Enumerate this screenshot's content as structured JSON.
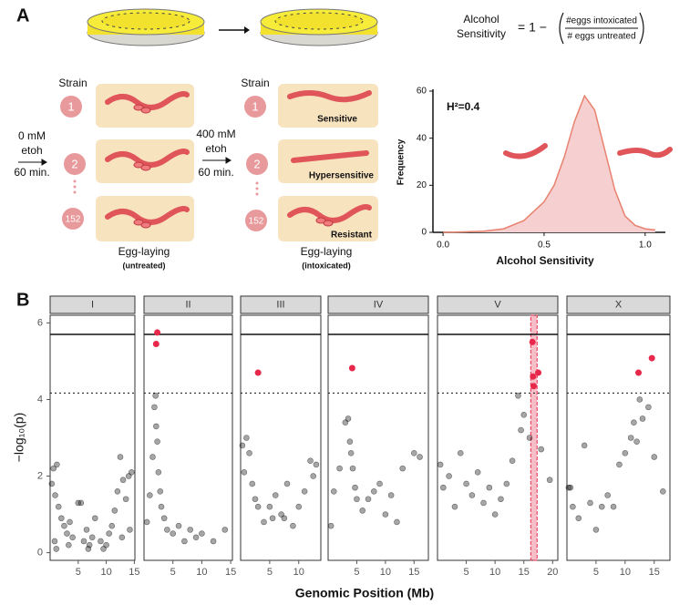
{
  "diagram": {
    "panel_a": "A",
    "panel_b": "B",
    "formula": {
      "lhs": [
        "Alcohol",
        "Sensitivity"
      ],
      "rhs": "= 1 −",
      "numerator": "#eggs intoxicated",
      "denominator": "# eggs untreated"
    },
    "strain_label": "Strain",
    "strains": [
      "1",
      "2",
      "152"
    ],
    "treatment_1": [
      "0 mM",
      "etoh",
      "60 min."
    ],
    "treatment_2": [
      "400 mM",
      "etoh",
      "60 min."
    ],
    "phenotypes": [
      "Sensitive",
      "Hypersensitive",
      "Resistant"
    ],
    "caption_1": [
      "Egg-laying",
      "(untreated)"
    ],
    "caption_2": [
      "Egg-laying",
      "(intoxicated)"
    ]
  },
  "chart_data": [
    {
      "type": "area",
      "annotation": "H²=0.4",
      "x_label": "Alcohol Sensitivity",
      "y_label": "Frequency",
      "x": [
        0,
        0.1,
        0.2,
        0.3,
        0.4,
        0.5,
        0.55,
        0.6,
        0.65,
        0.7,
        0.75,
        0.8,
        0.85,
        0.9,
        0.95,
        1.0,
        1.05
      ],
      "values": [
        0,
        0.2,
        0.5,
        1.5,
        5,
        13,
        20,
        32,
        47,
        58,
        52,
        35,
        18,
        7,
        3,
        1.5,
        1
      ],
      "color": "#e8826e",
      "fill": "#f6cfd1",
      "xlim": [
        -0.05,
        1.1
      ],
      "xticks": [
        {
          "value": 0,
          "label": "0.0"
        },
        {
          "value": 0.5,
          "label": "0.5"
        },
        {
          "value": 1,
          "label": "1.0"
        }
      ],
      "ylim": [
        0,
        60
      ],
      "yticks": [
        0,
        20,
        40,
        60
      ]
    },
    {
      "type": "scatter",
      "x_label": "Genomic Position (Mb)",
      "y_label": "−log₁₀(p)",
      "ylim": [
        -0.2,
        6.2
      ],
      "yticks": [
        0,
        2,
        4,
        6
      ],
      "point_color": "#000000",
      "sig_color": "#e8284a",
      "highlight_color": "#e8284a",
      "thresholds": [
        {
          "value": 5.7,
          "style": "solid"
        },
        {
          "value": 4.17,
          "style": "dotted"
        }
      ],
      "facets": [
        {
          "name": "I",
          "xlim": [
            0,
            15.1
          ],
          "xticks": [
            5,
            10,
            15
          ],
          "x": [
            0.3,
            0.6,
            0.9,
            1.2,
            1.5,
            2,
            2.5,
            3,
            3.5,
            4,
            5,
            5.5,
            6,
            6.5,
            7,
            7.5,
            8,
            9,
            10,
            10.5,
            11,
            11.5,
            12,
            12.5,
            13,
            13.5,
            14,
            14.5,
            0.8,
            1.1,
            3.3,
            6.8,
            9.5,
            12.8,
            14.2
          ],
          "y": [
            1.8,
            2.2,
            1.5,
            2.3,
            1.2,
            0.9,
            0.7,
            0.5,
            0.8,
            0.4,
            1.3,
            1.3,
            0.3,
            0.6,
            0.2,
            0.4,
            0.9,
            0.3,
            0.2,
            0.5,
            0.7,
            1.1,
            1.6,
            2.5,
            1.9,
            1.4,
            2.0,
            2.1,
            0.3,
            0.1,
            0.2,
            0.1,
            0.1,
            0.4,
            0.6
          ],
          "sig_x": [],
          "sig_y": []
        },
        {
          "name": "II",
          "xlim": [
            0,
            15.3
          ],
          "xticks": [
            5,
            10,
            15
          ],
          "x": [
            0.5,
            1,
            1.5,
            1.8,
            2,
            2.1,
            2.3,
            2.5,
            2.8,
            3,
            3.5,
            4,
            5,
            6,
            7,
            8,
            9,
            10,
            12,
            14
          ],
          "y": [
            0.8,
            1.5,
            2.5,
            3.8,
            4.1,
            3.3,
            2.9,
            2.1,
            1.6,
            1.2,
            0.9,
            0.6,
            0.5,
            0.7,
            0.3,
            0.6,
            0.4,
            0.5,
            0.3,
            0.6
          ],
          "sig_x": [
            2.3,
            2.1
          ],
          "sig_y": [
            5.75,
            5.45
          ]
        },
        {
          "name": "III",
          "xlim": [
            0,
            13.8
          ],
          "xticks": [
            5,
            10
          ],
          "x": [
            0.3,
            0.6,
            1,
            1.5,
            2,
            2.5,
            3,
            4,
            5,
            5.5,
            6,
            7,
            7.5,
            8,
            9,
            10,
            11,
            12,
            12.5,
            13
          ],
          "y": [
            2.8,
            2.1,
            3.0,
            2.6,
            1.8,
            1.4,
            1.2,
            0.8,
            1.2,
            0.9,
            1.5,
            1.0,
            0.9,
            1.8,
            0.7,
            1.2,
            1.6,
            2.4,
            2.0,
            2.3
          ],
          "sig_x": [
            3
          ],
          "sig_y": [
            4.7
          ]
        },
        {
          "name": "IV",
          "xlim": [
            0,
            17.5
          ],
          "xticks": [
            5,
            10,
            15
          ],
          "x": [
            0.5,
            1,
            2,
            3,
            3.5,
            3.8,
            4,
            4.3,
            4.7,
            5,
            6,
            7,
            8,
            9,
            10,
            11,
            12,
            13,
            15,
            16
          ],
          "y": [
            0.7,
            1.6,
            2.2,
            3.4,
            3.5,
            2.9,
            2.6,
            2.2,
            1.7,
            1.4,
            1.1,
            1.4,
            1.6,
            1.8,
            1.0,
            1.5,
            0.8,
            2.2,
            2.6,
            2.5
          ],
          "sig_x": [
            4.2
          ],
          "sig_y": [
            4.82
          ]
        },
        {
          "name": "V",
          "xlim": [
            0,
            20.9
          ],
          "xticks": [
            5,
            10,
            15,
            20
          ],
          "highlight": [
            16.2,
            17.3
          ],
          "x": [
            0.5,
            1,
            2,
            3,
            4,
            5,
            6,
            7,
            8,
            9,
            10,
            11,
            12,
            13,
            14,
            14.5,
            15,
            16,
            18,
            19.5
          ],
          "y": [
            2.3,
            1.7,
            2.0,
            1.2,
            2.6,
            1.8,
            1.5,
            2.1,
            1.3,
            1.7,
            1.0,
            1.4,
            1.8,
            2.4,
            4.1,
            3.2,
            3.6,
            3.0,
            2.7,
            1.9
          ],
          "sig_x": [
            16.5,
            16.6,
            16.7,
            17.5
          ],
          "sig_y": [
            5.5,
            4.6,
            4.35,
            4.7
          ]
        },
        {
          "name": "X",
          "xlim": [
            0,
            17.7
          ],
          "xticks": [
            5,
            10,
            15
          ],
          "x": [
            0.3,
            0.6,
            1,
            2,
            3,
            4,
            5,
            6,
            7,
            8,
            9,
            10,
            11,
            11.5,
            12,
            12.5,
            13,
            14,
            15,
            16.5
          ],
          "y": [
            1.7,
            1.7,
            1.2,
            0.9,
            2.8,
            1.3,
            0.6,
            1.2,
            1.5,
            1.2,
            2.3,
            2.6,
            3.0,
            3.4,
            2.9,
            4.0,
            3.5,
            3.8,
            2.5,
            1.6
          ],
          "sig_x": [
            12.3,
            14.6
          ],
          "sig_y": [
            4.7,
            5.08
          ]
        }
      ]
    }
  ]
}
